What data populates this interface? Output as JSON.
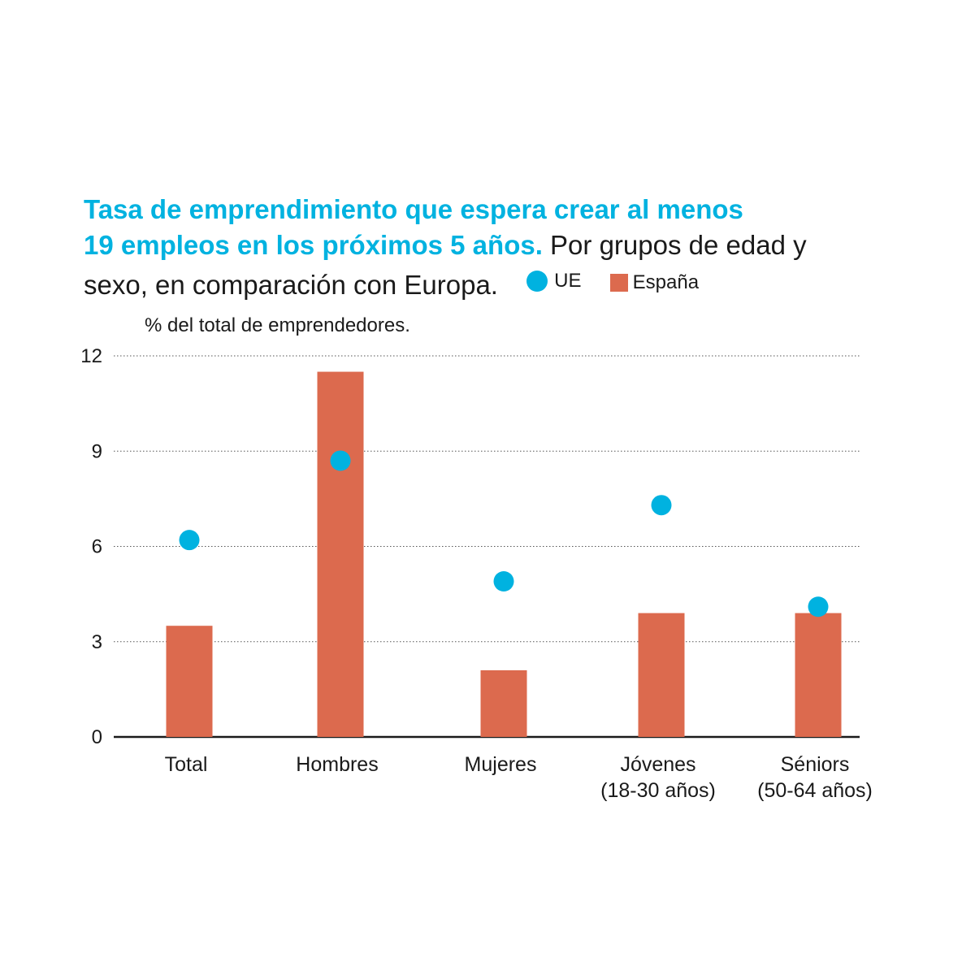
{
  "chart_data": {
    "type": "bar",
    "title": "Tasa de emprendimiento que espera crear al menos 19 empleos en los próximos 5 años.",
    "subtitle": "Por grupos de edad y sexo, en comparación con Europa.",
    "ylabel": "% del total de emprendedores.",
    "ylim": [
      0,
      12
    ],
    "yticks": [
      0,
      3,
      6,
      9,
      12
    ],
    "categories": [
      [
        "Total"
      ],
      [
        "Hombres"
      ],
      [
        "Mujeres"
      ],
      [
        "Jóvenes",
        "(18-30 años)"
      ],
      [
        "Séniors",
        "(50-64 años)"
      ]
    ],
    "series": [
      {
        "name": "UE",
        "kind": "dot",
        "color": "#00b2e0",
        "values": [
          6.2,
          8.7,
          4.9,
          7.3,
          4.1
        ]
      },
      {
        "name": "España",
        "kind": "bar",
        "color": "#dc6a4e",
        "values": [
          3.5,
          11.5,
          2.1,
          3.9,
          3.9
        ]
      }
    ],
    "grid": true,
    "legend": "top-right"
  },
  "title": {
    "line1": "Tasa de emprendimiento que espera crear al menos",
    "line2": "19 empleos en los próximos 5 años.",
    "rest1": "Por grupos de edad y",
    "rest2": "sexo, en comparación con Europa."
  },
  "legend": {
    "ue": "UE",
    "espana": "España"
  }
}
